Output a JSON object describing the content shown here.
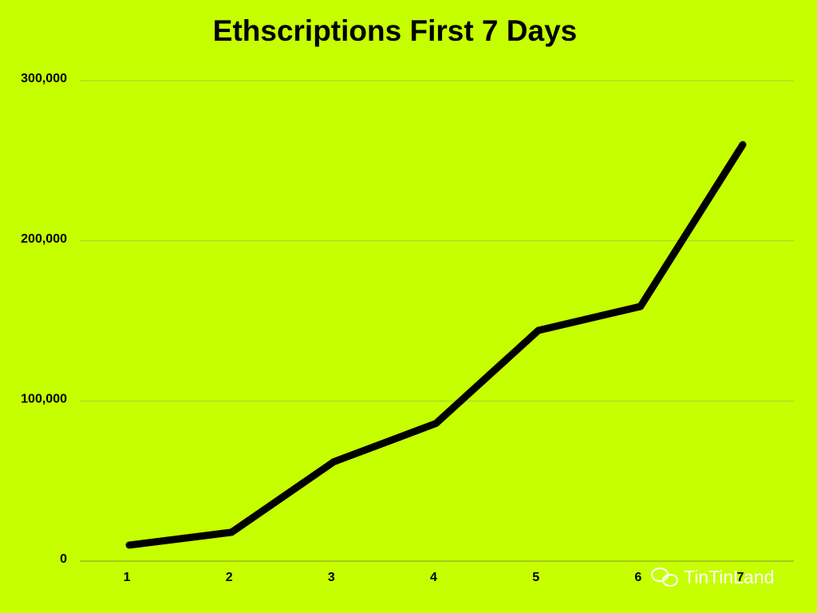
{
  "chart_data": {
    "type": "line",
    "title": "Ethscriptions First 7 Days",
    "categories": [
      "1",
      "2",
      "3",
      "4",
      "5",
      "6",
      "7"
    ],
    "values": [
      10000,
      18000,
      62000,
      86000,
      144000,
      159000,
      260000
    ],
    "color": "#000000",
    "ylim": [
      0,
      300000
    ],
    "yticks": [
      0,
      {
        "value": 100000,
        "label": "100,000"
      },
      {
        "value": 200000,
        "label": "200,000"
      },
      {
        "value": 300000,
        "label": "300,000"
      }
    ],
    "grid": true,
    "watermark": "TinTinLand"
  }
}
